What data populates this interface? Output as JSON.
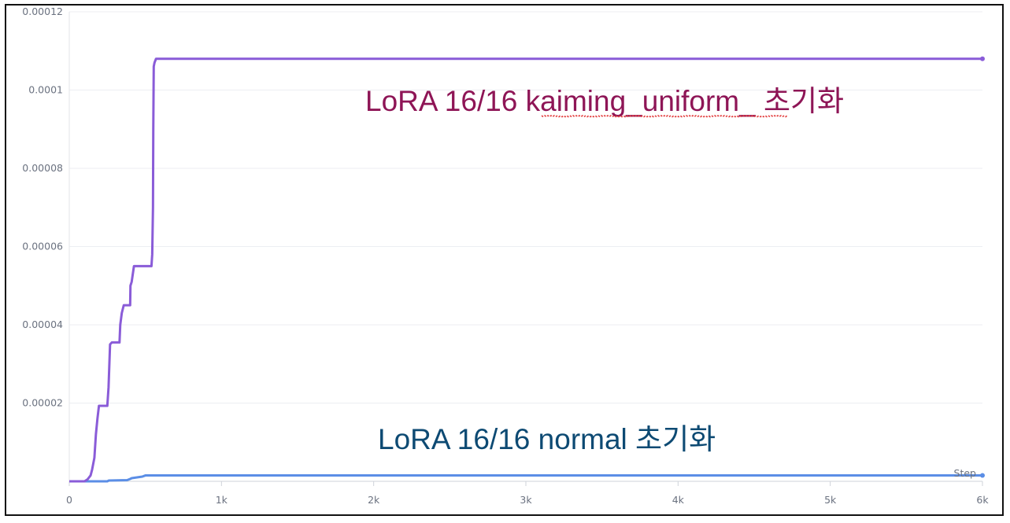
{
  "chart_data": {
    "type": "line",
    "title": "",
    "xlabel": "Step",
    "ylabel": "",
    "xlim": [
      0,
      6000
    ],
    "ylim": [
      0,
      0.00012
    ],
    "x_ticks": [
      0,
      1000,
      2000,
      3000,
      4000,
      5000,
      6000
    ],
    "x_tick_labels": [
      "0",
      "1k",
      "2k",
      "3k",
      "4k",
      "5k",
      "6k"
    ],
    "y_ticks": [
      2e-05,
      4e-05,
      6e-05,
      8e-05,
      0.0001,
      0.00012
    ],
    "y_tick_labels": [
      "0.00002",
      "0.00004",
      "0.00006",
      "0.00008",
      "0.0001",
      "0.00012"
    ],
    "grid": true,
    "series": [
      {
        "color": "#8A5CD8",
        "x": [
          0,
          100,
          120,
          140,
          150,
          165,
          175,
          185,
          195,
          250,
          258,
          268,
          280,
          330,
          335,
          345,
          358,
          365,
          400,
          402,
          410,
          425,
          440,
          540,
          545,
          550,
          552,
          555,
          560,
          570,
          6000
        ],
        "y": [
          0,
          0,
          5e-07,
          1.5e-06,
          3e-06,
          6e-06,
          1.2e-05,
          1.6e-05,
          1.93e-05,
          1.93e-05,
          2.4e-05,
          3.5e-05,
          3.55e-05,
          3.55e-05,
          4e-05,
          4.3e-05,
          4.5e-05,
          4.5e-05,
          4.5e-05,
          5e-05,
          5.1e-05,
          5.5e-05,
          5.5e-05,
          5.5e-05,
          5.8e-05,
          7e-05,
          9e-05,
          0.000106,
          0.000107,
          0.000108,
          0.000108
        ]
      },
      {
        "color": "#5B8EE6",
        "x": [
          0,
          250,
          260,
          380,
          400,
          410,
          480,
          500,
          6000
        ],
        "y": [
          0,
          0,
          2e-07,
          3e-07,
          6e-07,
          8e-07,
          1.2e-06,
          1.5e-06,
          1.5e-06
        ]
      }
    ],
    "annotations": [
      {
        "text": "LoRA 16/16 kaiming_uniform_ 초기화",
        "color": "#8E1556"
      },
      {
        "text": "LoRA 16/16 normal 초기화",
        "color": "#0D4A73"
      }
    ]
  }
}
